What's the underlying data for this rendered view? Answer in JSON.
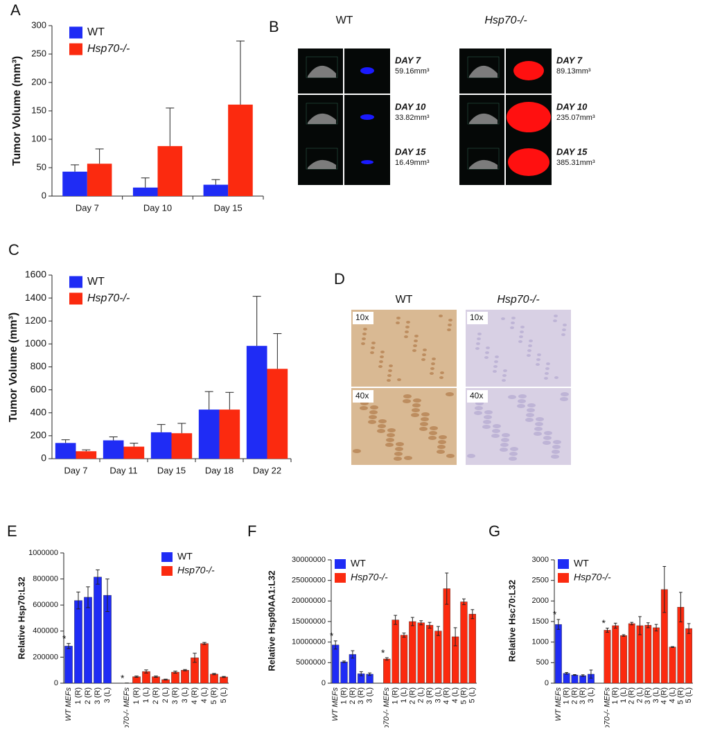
{
  "chart_data": [
    {
      "type": "bar",
      "panel": "A",
      "ylabel": "Tumor Volume (mm³)",
      "categories": [
        "Day 7",
        "Day 10",
        "Day 15"
      ],
      "series": [
        {
          "name": "WT",
          "color": "#1f2cf5",
          "values": [
            43,
            15,
            20
          ],
          "errors": [
            12,
            17,
            9
          ]
        },
        {
          "name": "Hsp70-/-",
          "color": "#fb2a0f",
          "values": [
            57,
            88,
            161
          ],
          "errors": [
            26,
            67,
            112
          ]
        }
      ],
      "ylim": [
        0,
        300
      ],
      "yticks": [
        0,
        50,
        100,
        150,
        200,
        250,
        300
      ],
      "legend": "upper left"
    },
    {
      "type": "bar",
      "panel": "C",
      "ylabel": "Tumor Volume (mm³)",
      "categories": [
        "Day 7",
        "Day 11",
        "Day 15",
        "Day 18",
        "Day 22"
      ],
      "series": [
        {
          "name": "WT",
          "color": "#1f2cf5",
          "values": [
            137,
            160,
            230,
            428,
            983
          ],
          "errors": [
            28,
            30,
            68,
            157,
            432
          ]
        },
        {
          "name": "Hsp70-/-",
          "color": "#fb2a0f",
          "values": [
            65,
            105,
            222,
            428,
            783
          ],
          "errors": [
            12,
            30,
            86,
            150,
            307
          ]
        }
      ],
      "ylim": [
        0,
        1600
      ],
      "yticks": [
        0,
        200,
        400,
        600,
        800,
        1000,
        1200,
        1400,
        1600
      ],
      "legend": "upper left"
    },
    {
      "type": "bar",
      "panel": "E",
      "ylabel": "Relative Hsp70:L32",
      "categories": [
        "WT MEFs",
        "1 (R)",
        "2 (R)",
        "3 (R)",
        "3 (L)",
        "Hsp70-/- MEFs",
        "1 (R)",
        "1 (L)",
        "2 (R)",
        "2 (L)",
        "3 (R)",
        "3 (L)",
        "4 (R)",
        "4 (L)",
        "5 (R)",
        "5 (L)"
      ],
      "series": [
        {
          "name": "WT",
          "color": "#1f2cf5",
          "values": [
            285000,
            635000,
            660000,
            815000,
            675000,
            null,
            null,
            null,
            null,
            null,
            null,
            null,
            null,
            null,
            null,
            null
          ],
          "errors": [
            20000,
            65000,
            80000,
            55000,
            125000,
            null,
            null,
            null,
            null,
            null,
            null,
            null,
            null,
            null,
            null,
            null
          ]
        },
        {
          "name": "Hsp70-/-",
          "color": "#fb2a0f",
          "values": [
            null,
            null,
            null,
            null,
            null,
            1000,
            50000,
            90000,
            50000,
            28000,
            85000,
            100000,
            195000,
            305000,
            70000,
            48000
          ],
          "errors": [
            null,
            null,
            null,
            null,
            null,
            0,
            5000,
            12000,
            5000,
            3000,
            8000,
            5000,
            35000,
            8000,
            5000,
            4000
          ]
        }
      ],
      "ylim": [
        0,
        1000000
      ],
      "yticks": [
        0,
        200000,
        400000,
        600000,
        800000,
        1000000
      ],
      "legend": "upper right",
      "annotations": [
        {
          "text": "*",
          "x": "WT MEFs"
        },
        {
          "text": "*",
          "x": "Hsp70-/- MEFs"
        }
      ]
    },
    {
      "type": "bar",
      "panel": "F",
      "ylabel": "Relative Hsp90AA1:L32",
      "categories": [
        "WT MEFs",
        "1 (R)",
        "2 (R)",
        "3 (R)",
        "3 (L)",
        "Hsp70-/- MEFs",
        "1 (R)",
        "1 (L)",
        "2 (R)",
        "2 (L)",
        "3 (R)",
        "3 (L)",
        "4 (R)",
        "4 (L)",
        "5 (R)",
        "5 (L)"
      ],
      "series": [
        {
          "name": "WT",
          "color": "#1f2cf5",
          "values": [
            9300000,
            5200000,
            7000000,
            2300000,
            2200000,
            null,
            null,
            null,
            null,
            null,
            null,
            null,
            null,
            null,
            null,
            null
          ],
          "errors": [
            1000000,
            200000,
            900000,
            500000,
            300000,
            null,
            null,
            null,
            null,
            null,
            null,
            null,
            null,
            null,
            null,
            null
          ]
        },
        {
          "name": "Hsp70-/-",
          "color": "#fb2a0f",
          "values": [
            null,
            null,
            null,
            null,
            null,
            5900000,
            15400000,
            11700000,
            15000000,
            14700000,
            14100000,
            12700000,
            23000000,
            11300000,
            19800000,
            16800000
          ],
          "errors": [
            null,
            null,
            null,
            null,
            null,
            300000,
            1100000,
            500000,
            1000000,
            500000,
            700000,
            1100000,
            3800000,
            2200000,
            700000,
            1100000
          ]
        }
      ],
      "ylim": [
        0,
        30000000
      ],
      "yticks": [
        0,
        5000000,
        10000000,
        15000000,
        20000000,
        25000000,
        30000000
      ],
      "legend": "upper left",
      "annotations": [
        {
          "text": "*",
          "x": "WT MEFs"
        },
        {
          "text": "*",
          "x": "Hsp70-/- MEFs"
        }
      ]
    },
    {
      "type": "bar",
      "panel": "G",
      "ylabel": "Relative Hsc70:L32",
      "categories": [
        "WT MEFs",
        "1 (R)",
        "2 (R)",
        "3 (R)",
        "3 (L)",
        "Hsp70-/- MEFs",
        "1 (R)",
        "1 (L)",
        "2 (R)",
        "2 (L)",
        "3 (R)",
        "3 (L)",
        "4 (R)",
        "4 (L)",
        "5 (R)",
        "5 (L)"
      ],
      "series": [
        {
          "name": "WT",
          "color": "#1f2cf5",
          "values": [
            1430,
            240,
            200,
            185,
            220,
            null,
            null,
            null,
            null,
            null,
            null,
            null,
            null,
            null,
            null,
            null
          ],
          "errors": [
            120,
            20,
            10,
            20,
            100,
            null,
            null,
            null,
            null,
            null,
            null,
            null,
            null,
            null,
            null,
            null
          ]
        },
        {
          "name": "Hsp70-/-",
          "color": "#fb2a0f",
          "values": [
            null,
            null,
            null,
            null,
            null,
            1290,
            1400,
            1160,
            1450,
            1400,
            1410,
            1350,
            2280,
            880,
            1850,
            1330
          ],
          "errors": [
            null,
            null,
            null,
            null,
            null,
            50,
            60,
            20,
            30,
            220,
            60,
            80,
            560,
            10,
            360,
            120
          ]
        }
      ],
      "ylim": [
        0,
        3000
      ],
      "yticks": [
        0,
        500,
        1000,
        1500,
        2000,
        2500,
        3000
      ],
      "legend": "upper left",
      "annotations": [
        {
          "text": "*",
          "x": "WT MEFs"
        },
        {
          "text": "*",
          "x": "Hsp70-/- MEFs"
        }
      ]
    }
  ],
  "image_panels": {
    "B": {
      "panel": "B",
      "groups": [
        {
          "title": "WT",
          "rows": [
            {
              "day": "DAY 7",
              "volume": "59.16mm³"
            },
            {
              "day": "DAY 10",
              "volume": "33.82mm³"
            },
            {
              "day": "DAY 15",
              "volume": "16.49mm³"
            }
          ]
        },
        {
          "title": "Hsp70-/-",
          "rows": [
            {
              "day": "DAY 7",
              "volume": "89.13mm³"
            },
            {
              "day": "DAY 10",
              "volume": "235.07mm³"
            },
            {
              "day": "DAY 15",
              "volume": "385.31mm³"
            }
          ]
        }
      ]
    },
    "D": {
      "panel": "D",
      "groups": [
        {
          "title": "WT",
          "magnifications": [
            "10x",
            "40x"
          ]
        },
        {
          "title": "Hsp70-/-",
          "magnifications": [
            "10x",
            "40x"
          ]
        }
      ]
    }
  }
}
